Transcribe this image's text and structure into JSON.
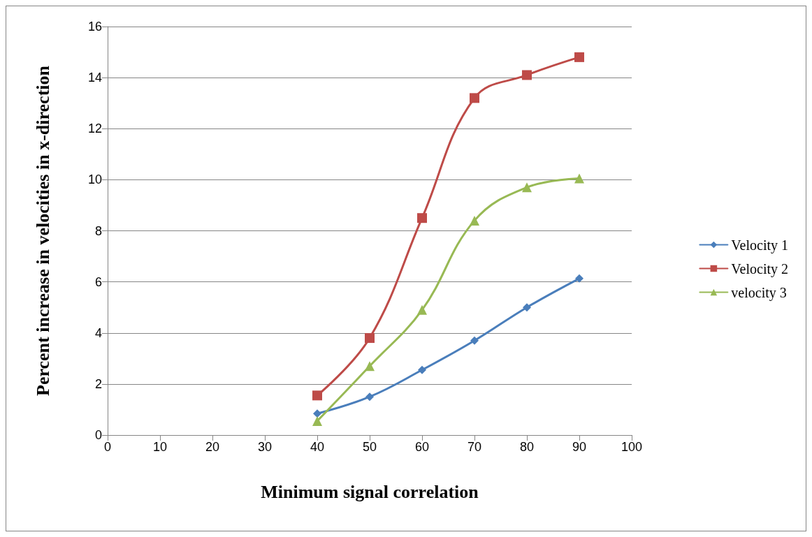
{
  "chart_data": {
    "type": "line",
    "xlabel": "Minimum signal correlation",
    "ylabel": "Percent increase in velocities in x-direction",
    "x": [
      40,
      50,
      60,
      70,
      80,
      90
    ],
    "series": [
      {
        "name": "Velocity 1",
        "color": "#4a7ebb",
        "marker": "diamond",
        "values": [
          0.84,
          1.5,
          2.55,
          3.7,
          5.0,
          6.13
        ]
      },
      {
        "name": "Velocity 2",
        "color": "#be4b48",
        "marker": "square",
        "values": [
          1.55,
          3.8,
          8.5,
          13.2,
          14.1,
          14.8
        ]
      },
      {
        "name": "velocity 3",
        "color": "#98b954",
        "marker": "triangle",
        "values": [
          0.55,
          2.7,
          4.9,
          8.4,
          9.7,
          10.05
        ]
      }
    ],
    "xlim": [
      0,
      100
    ],
    "xticks": [
      0,
      10,
      20,
      30,
      40,
      50,
      60,
      70,
      80,
      90,
      100
    ],
    "ylim": [
      0,
      16
    ],
    "yticks": [
      0,
      2,
      4,
      6,
      8,
      10,
      12,
      14,
      16
    ],
    "grid": "y",
    "legend": "right",
    "line_style": "solid"
  }
}
